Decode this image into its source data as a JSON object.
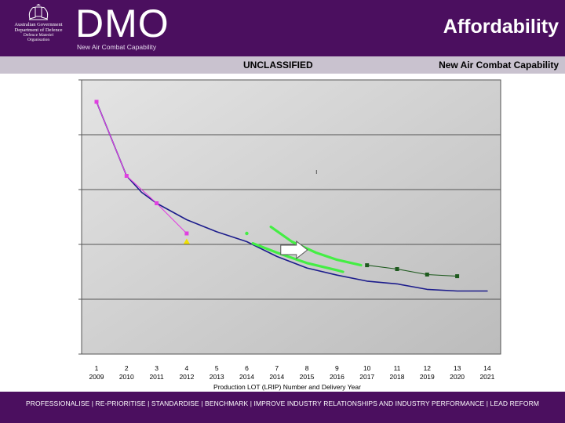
{
  "header": {
    "crest_lines": [
      "Australian Government",
      "Department of Defence",
      "Defence Materiel",
      "Organisation"
    ],
    "logo_text": "DMO",
    "logo_subtitle": "New Air Combat Capability",
    "title": "Affordability"
  },
  "classification": "UNCLASSIFIED",
  "program_label": "New Air Combat Capability",
  "footer": "PROFESSIONALISE | RE-PRIORITISE | STANDARDISE | BENCHMARK | IMPROVE INDUSTRY RELATIONSHIPS AND INDUSTRY PERFORMANCE | LEAD REFORM",
  "chart_data": {
    "type": "line",
    "xlabel": "Production LOT (LRIP) Number and Delivery Year",
    "ylabel": "",
    "categories": [
      {
        "lot": "1",
        "year": "2009"
      },
      {
        "lot": "2",
        "year": "2010"
      },
      {
        "lot": "3",
        "year": "2011"
      },
      {
        "lot": "4",
        "year": "2012"
      },
      {
        "lot": "5",
        "year": "2013"
      },
      {
        "lot": "6",
        "year": "2014"
      },
      {
        "lot": "7",
        "year": "2014"
      },
      {
        "lot": "8",
        "year": "2015"
      },
      {
        "lot": "9",
        "year": "2016"
      },
      {
        "lot": "10",
        "year": "2017"
      },
      {
        "lot": "11",
        "year": "2018"
      },
      {
        "lot": "12",
        "year": "2019"
      },
      {
        "lot": "13",
        "year": "2020"
      },
      {
        "lot": "14",
        "year": "2021"
      }
    ],
    "ylim": [
      0,
      5
    ],
    "grid": true,
    "legend": "none",
    "annotation_text": "ı",
    "series": [
      {
        "key": "blue",
        "color": "#1c1c8c",
        "marker": "none",
        "x": [
          1,
          2,
          2.5,
          3,
          4,
          5,
          6,
          7,
          8,
          9,
          10,
          11,
          12,
          13,
          14
        ],
        "y": [
          4.6,
          3.25,
          2.95,
          2.75,
          2.45,
          2.23,
          2.05,
          1.78,
          1.57,
          1.44,
          1.33,
          1.28,
          1.18,
          1.15,
          1.15
        ]
      },
      {
        "key": "magenta",
        "color": "#e040e0",
        "marker": "square",
        "x": [
          1,
          2,
          3,
          4
        ],
        "y": [
          4.6,
          3.25,
          2.75,
          2.2
        ]
      },
      {
        "key": "green-upper",
        "color": "#44ee44",
        "marker": "none",
        "x": [
          6.8,
          7.5,
          8.3,
          9,
          9.8
        ],
        "y": [
          2.32,
          2.05,
          1.85,
          1.72,
          1.62
        ]
      },
      {
        "key": "green-lower",
        "color": "#44ee44",
        "marker": "none",
        "x": [
          6.2,
          7,
          8,
          9,
          9.2
        ],
        "y": [
          2.02,
          1.85,
          1.66,
          1.53,
          1.5
        ]
      },
      {
        "key": "dark-green",
        "color": "#1e5a1e",
        "marker": "square",
        "x": [
          10,
          11,
          12,
          13
        ],
        "y": [
          1.62,
          1.55,
          1.45,
          1.42
        ]
      }
    ],
    "extra_points": [
      {
        "key": "yellow-triangle",
        "shape": "triangle",
        "color": "#f0e000",
        "x": 4,
        "y": 2.05
      },
      {
        "key": "green-dot",
        "shape": "circle",
        "color": "#44ee44",
        "x": 6,
        "y": 2.2
      }
    ],
    "arrow_marker": {
      "x": 7.6,
      "y": 1.9
    }
  }
}
